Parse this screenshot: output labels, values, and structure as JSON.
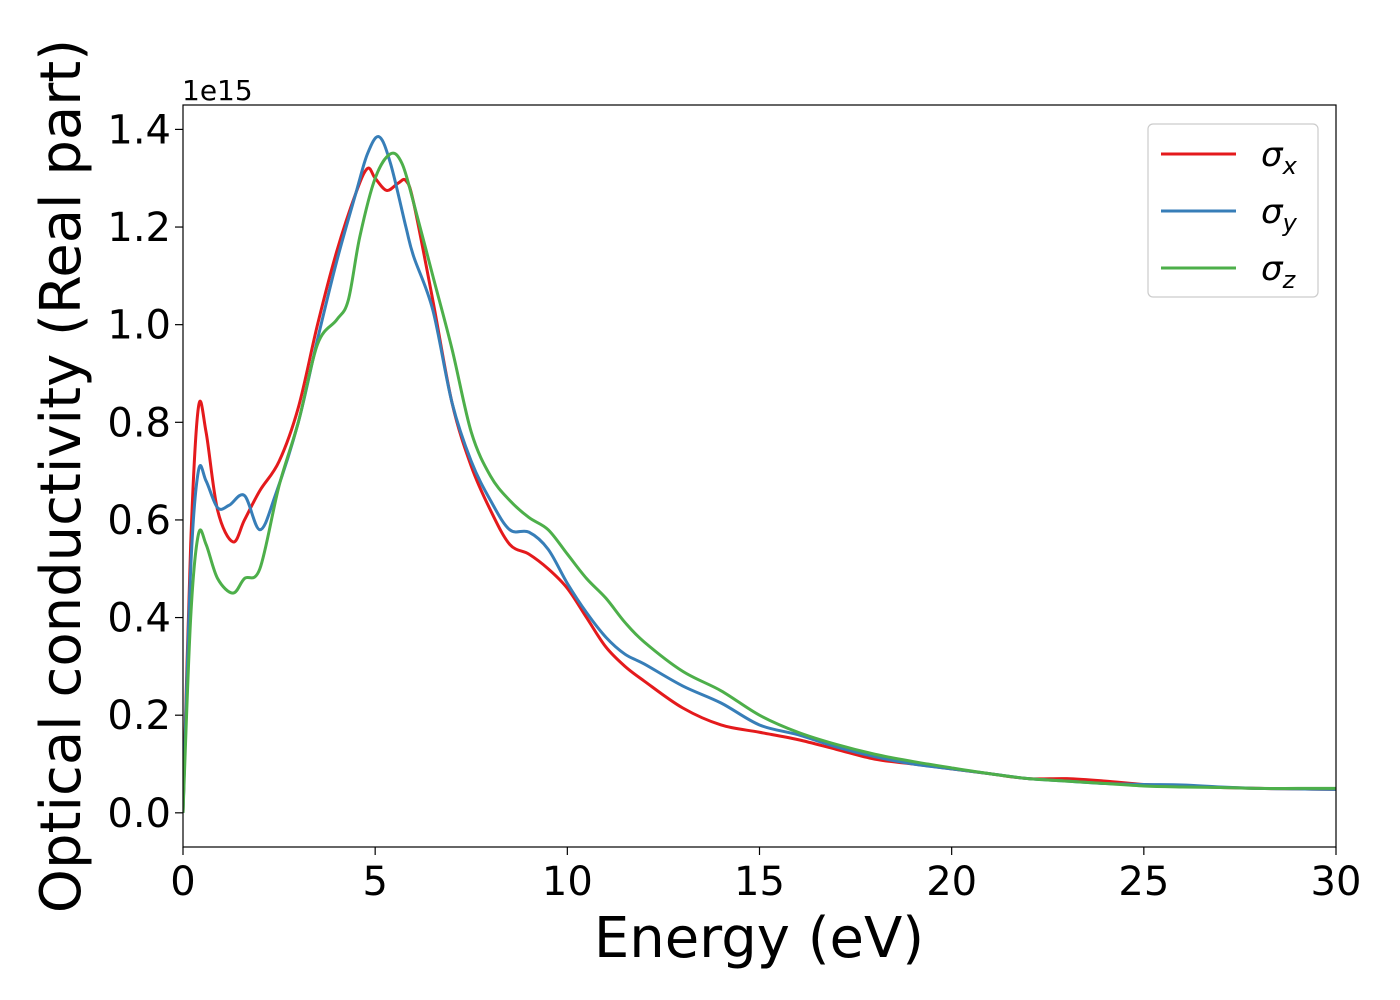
{
  "chart_data": {
    "type": "line",
    "xlabel": "Energy (eV)",
    "ylabel": "Optical conductivity (Real part)",
    "y_offset_text": "1e15",
    "y_scale_factor": 1000000000000000.0,
    "xlim": [
      0,
      30
    ],
    "ylim": [
      -0.07,
      1.45
    ],
    "x_ticks": [
      0,
      5,
      10,
      15,
      20,
      25,
      30
    ],
    "x_tick_labels": [
      "0",
      "5",
      "10",
      "15",
      "20",
      "25",
      "30"
    ],
    "y_ticks": [
      0.0,
      0.2,
      0.4,
      0.6,
      0.8,
      1.0,
      1.2,
      1.4
    ],
    "y_tick_labels": [
      "0.0",
      "0.2",
      "0.4",
      "0.6",
      "0.8",
      "1.0",
      "1.2",
      "1.4"
    ],
    "grid": false,
    "legend_position": "top-right",
    "series": [
      {
        "name": "σx",
        "symbol": "σ",
        "subscript": "x",
        "color": "#e41a1c",
        "points": [
          [
            0,
            0.0
          ],
          [
            0.2,
            0.55
          ],
          [
            0.4,
            0.83
          ],
          [
            0.6,
            0.78
          ],
          [
            0.9,
            0.62
          ],
          [
            1.3,
            0.555
          ],
          [
            1.6,
            0.6
          ],
          [
            2.0,
            0.66
          ],
          [
            2.5,
            0.72
          ],
          [
            3.0,
            0.83
          ],
          [
            3.5,
            1.0
          ],
          [
            4.0,
            1.15
          ],
          [
            4.5,
            1.27
          ],
          [
            4.8,
            1.32
          ],
          [
            5.0,
            1.3
          ],
          [
            5.3,
            1.275
          ],
          [
            5.6,
            1.29
          ],
          [
            5.8,
            1.295
          ],
          [
            6.0,
            1.25
          ],
          [
            6.5,
            1.05
          ],
          [
            7.0,
            0.84
          ],
          [
            7.5,
            0.71
          ],
          [
            8.0,
            0.62
          ],
          [
            8.5,
            0.55
          ],
          [
            9.0,
            0.53
          ],
          [
            9.5,
            0.5
          ],
          [
            10.0,
            0.46
          ],
          [
            10.5,
            0.4
          ],
          [
            11.0,
            0.34
          ],
          [
            11.5,
            0.3
          ],
          [
            12.0,
            0.27
          ],
          [
            13.0,
            0.215
          ],
          [
            14.0,
            0.18
          ],
          [
            15.0,
            0.165
          ],
          [
            16.0,
            0.15
          ],
          [
            17.0,
            0.13
          ],
          [
            18.0,
            0.11
          ],
          [
            19.0,
            0.1
          ],
          [
            20.0,
            0.09
          ],
          [
            21.0,
            0.08
          ],
          [
            22.0,
            0.07
          ],
          [
            23.0,
            0.07
          ],
          [
            24.0,
            0.065
          ],
          [
            25.0,
            0.058
          ],
          [
            26.0,
            0.055
          ],
          [
            27.0,
            0.052
          ],
          [
            28.0,
            0.05
          ],
          [
            29.0,
            0.049
          ],
          [
            30.0,
            0.048
          ]
        ]
      },
      {
        "name": "σy",
        "symbol": "σ",
        "subscript": "y",
        "color": "#377eb8",
        "points": [
          [
            0,
            0.0
          ],
          [
            0.2,
            0.5
          ],
          [
            0.4,
            0.7
          ],
          [
            0.6,
            0.68
          ],
          [
            0.9,
            0.625
          ],
          [
            1.2,
            0.63
          ],
          [
            1.6,
            0.65
          ],
          [
            2.0,
            0.58
          ],
          [
            2.4,
            0.65
          ],
          [
            3.0,
            0.8
          ],
          [
            3.5,
            0.97
          ],
          [
            4.0,
            1.13
          ],
          [
            4.5,
            1.27
          ],
          [
            4.8,
            1.35
          ],
          [
            5.1,
            1.385
          ],
          [
            5.4,
            1.33
          ],
          [
            5.8,
            1.2
          ],
          [
            6.0,
            1.14
          ],
          [
            6.5,
            1.03
          ],
          [
            7.0,
            0.84
          ],
          [
            7.5,
            0.72
          ],
          [
            8.0,
            0.64
          ],
          [
            8.5,
            0.58
          ],
          [
            9.0,
            0.575
          ],
          [
            9.5,
            0.54
          ],
          [
            10.0,
            0.47
          ],
          [
            10.5,
            0.41
          ],
          [
            11.0,
            0.36
          ],
          [
            11.5,
            0.325
          ],
          [
            12.0,
            0.305
          ],
          [
            13.0,
            0.26
          ],
          [
            14.0,
            0.225
          ],
          [
            15.0,
            0.18
          ],
          [
            16.0,
            0.16
          ],
          [
            17.0,
            0.135
          ],
          [
            18.0,
            0.115
          ],
          [
            19.0,
            0.1
          ],
          [
            20.0,
            0.09
          ],
          [
            21.0,
            0.08
          ],
          [
            22.0,
            0.07
          ],
          [
            23.0,
            0.065
          ],
          [
            24.0,
            0.06
          ],
          [
            25.0,
            0.058
          ],
          [
            26.0,
            0.057
          ],
          [
            27.0,
            0.053
          ],
          [
            28.0,
            0.05
          ],
          [
            29.0,
            0.049
          ],
          [
            30.0,
            0.048
          ]
        ]
      },
      {
        "name": "σz",
        "symbol": "σ",
        "subscript": "z",
        "color": "#4daf4a",
        "points": [
          [
            0,
            0.0
          ],
          [
            0.2,
            0.4
          ],
          [
            0.4,
            0.57
          ],
          [
            0.6,
            0.55
          ],
          [
            0.9,
            0.48
          ],
          [
            1.3,
            0.45
          ],
          [
            1.6,
            0.48
          ],
          [
            2.0,
            0.5
          ],
          [
            2.5,
            0.67
          ],
          [
            3.0,
            0.8
          ],
          [
            3.5,
            0.96
          ],
          [
            4.0,
            1.01
          ],
          [
            4.3,
            1.05
          ],
          [
            4.6,
            1.18
          ],
          [
            5.0,
            1.3
          ],
          [
            5.4,
            1.35
          ],
          [
            5.7,
            1.33
          ],
          [
            6.0,
            1.25
          ],
          [
            6.5,
            1.1
          ],
          [
            7.0,
            0.95
          ],
          [
            7.5,
            0.78
          ],
          [
            8.0,
            0.69
          ],
          [
            8.5,
            0.64
          ],
          [
            9.0,
            0.605
          ],
          [
            9.5,
            0.58
          ],
          [
            10.0,
            0.53
          ],
          [
            10.5,
            0.48
          ],
          [
            11.0,
            0.44
          ],
          [
            11.5,
            0.39
          ],
          [
            12.0,
            0.35
          ],
          [
            13.0,
            0.29
          ],
          [
            14.0,
            0.25
          ],
          [
            15.0,
            0.2
          ],
          [
            16.0,
            0.165
          ],
          [
            17.0,
            0.14
          ],
          [
            18.0,
            0.12
          ],
          [
            19.0,
            0.105
          ],
          [
            20.0,
            0.092
          ],
          [
            21.0,
            0.08
          ],
          [
            22.0,
            0.07
          ],
          [
            23.0,
            0.065
          ],
          [
            24.0,
            0.06
          ],
          [
            25.0,
            0.055
          ],
          [
            26.0,
            0.053
          ],
          [
            27.0,
            0.052
          ],
          [
            28.0,
            0.05
          ],
          [
            29.0,
            0.05
          ],
          [
            30.0,
            0.05
          ]
        ]
      }
    ]
  }
}
